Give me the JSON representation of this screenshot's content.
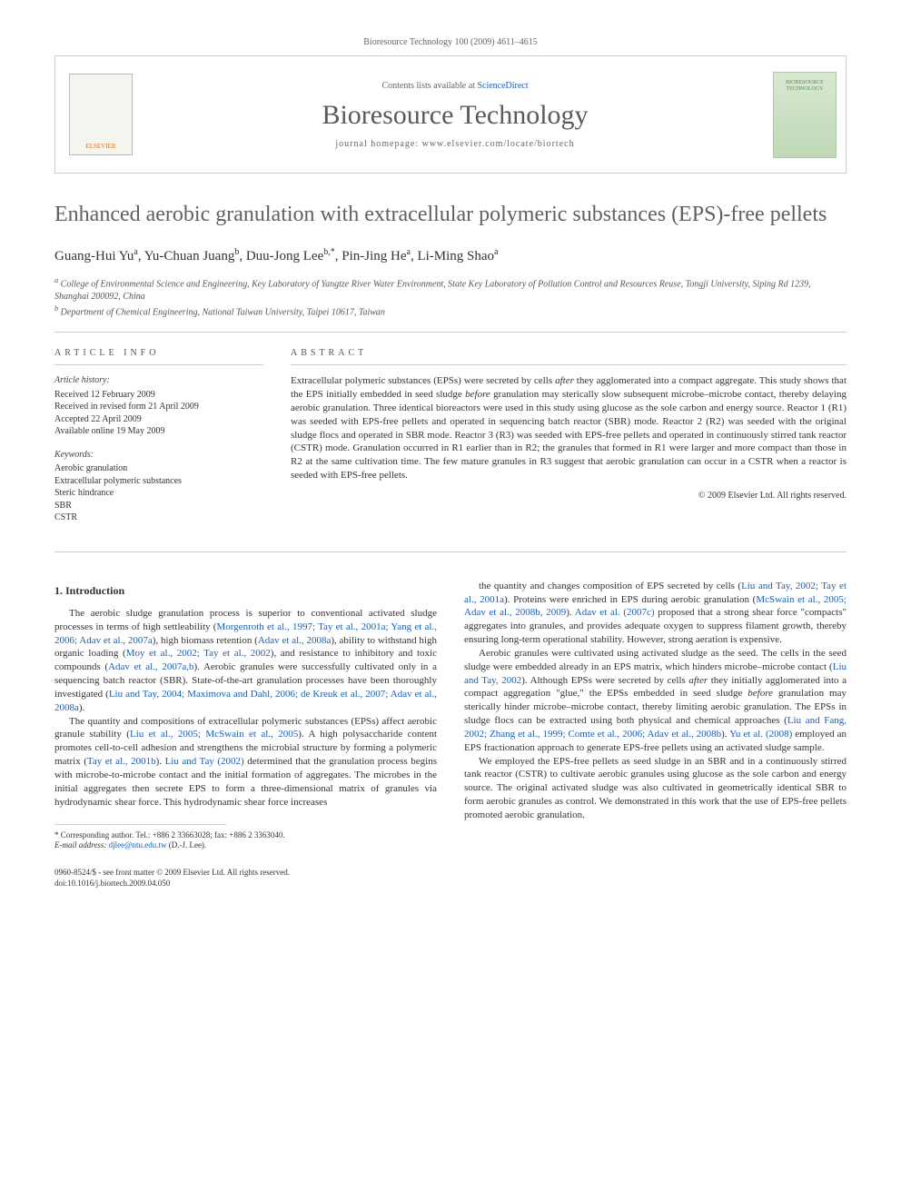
{
  "meta": {
    "citation": "Bioresource Technology 100 (2009) 4611–4615"
  },
  "header": {
    "contents_prefix": "Contents lists available at ",
    "contents_link": "ScienceDirect",
    "journal": "Bioresource Technology",
    "homepage": "journal homepage: www.elsevier.com/locate/biortech",
    "publisher_logo": "ELSEVIER",
    "cover_text": "BIORESOURCE TECHNOLOGY"
  },
  "title": "Enhanced aerobic granulation with extracellular polymeric substances (EPS)-free pellets",
  "authors_html": "Guang-Hui Yu<sup>a</sup>, Yu-Chuan Juang<sup>b</sup>, Duu-Jong Lee<sup>b,*</sup>, Pin-Jing He<sup>a</sup>, Li-Ming Shao<sup>a</sup>",
  "affiliations": {
    "a": "College of Environmental Science and Engineering, Key Laboratory of Yangtze River Water Environment, State Key Laboratory of Pollution Control and Resources Reuse, Tongji University, Siping Rd 1239, Shanghai 200092, China",
    "b": "Department of Chemical Engineering, National Taiwan University, Taipei 10617, Taiwan"
  },
  "article_info": {
    "heading": "ARTICLE INFO",
    "history_label": "Article history:",
    "history": [
      "Received 12 February 2009",
      "Received in revised form 21 April 2009",
      "Accepted 22 April 2009",
      "Available online 19 May 2009"
    ],
    "keywords_label": "Keywords:",
    "keywords": [
      "Aerobic granulation",
      "Extracellular polymeric substances",
      "Steric hindrance",
      "SBR",
      "CSTR"
    ]
  },
  "abstract": {
    "heading": "ABSTRACT",
    "text": "Extracellular polymeric substances (EPSs) were secreted by cells <em>after</em> they agglomerated into a compact aggregate. This study shows that the EPS initially embedded in seed sludge <em>before</em> granulation may sterically slow subsequent microbe–microbe contact, thereby delaying aerobic granulation. Three identical bioreactors were used in this study using glucose as the sole carbon and energy source. Reactor 1 (R1) was seeded with EPS-free pellets and operated in sequencing batch reactor (SBR) mode. Reactor 2 (R2) was seeded with the original sludge flocs and operated in SBR mode. Reactor 3 (R3) was seeded with EPS-free pellets and operated in continuously stirred tank reactor (CSTR) mode. Granulation occurred in R1 earlier than in R2; the granules that formed in R1 were larger and more compact than those in R2 at the same cultivation time. The few mature granules in R3 suggest that aerobic granulation can occur in a CSTR when a reactor is seeded with EPS-free pellets.",
    "copyright": "© 2009 Elsevier Ltd. All rights reserved."
  },
  "body": {
    "section1_heading": "1. Introduction",
    "p1": "The aerobic sludge granulation process is superior to conventional activated sludge processes in terms of high settleability (<span class=\"cite\">Morgenroth et al., 1997; Tay et al., 2001a; Yang et al., 2006; Adav et al., 2007a</span>), high biomass retention (<span class=\"cite\">Adav et al., 2008a</span>), ability to withstand high organic loading (<span class=\"cite\">Moy et al., 2002; Tay et al., 2002</span>), and resistance to inhibitory and toxic compounds (<span class=\"cite\">Adav et al., 2007a,b</span>). Aerobic granules were successfully cultivated only in a sequencing batch reactor (SBR). State-of-the-art granulation processes have been thoroughly investigated (<span class=\"cite\">Liu and Tay, 2004; Maximova and Dahl, 2006; de Kreuk et al., 2007; Adav et al., 2008a</span>).",
    "p2": "The quantity and compositions of extracellular polymeric substances (EPSs) affect aerobic granule stability (<span class=\"cite\">Liu et al., 2005; McSwain et al., 2005</span>). A high polysaccharide content promotes cell-to-cell adhesion and strengthens the microbial structure by forming a polymeric matrix (<span class=\"cite\">Tay et al., 2001b</span>). <span class=\"cite\">Liu and Tay (2002)</span> determined that the granulation process begins with microbe-to-microbe contact and the initial formation of aggregates. The microbes in the initial aggregates then secrete EPS to form a three-dimensional matrix of granules via hydrodynamic shear force. This hydrodynamic shear force increases",
    "p3": "the quantity and changes composition of EPS secreted by cells (<span class=\"cite\">Liu and Tay, 2002; Tay et al., 2001a</span>). Proteins were enriched in EPS during aerobic granulation (<span class=\"cite\">McSwain et al., 2005; Adav et al., 2008b, 2009</span>). <span class=\"cite\">Adav et al. (2007c)</span> proposed that a strong shear force \"compacts\" aggregates into granules, and provides adequate oxygen to suppress filament growth, thereby ensuring long-term operational stability. However, strong aeration is expensive.",
    "p4": "Aerobic granules were cultivated using activated sludge as the seed. The cells in the seed sludge were embedded already in an EPS matrix, which hinders microbe–microbe contact (<span class=\"cite\">Liu and Tay, 2002</span>). Although EPSs were secreted by cells <em>after</em> they initially agglomerated into a compact aggregation \"glue,\" the EPSs embedded in seed sludge <em>before</em> granulation may sterically hinder microbe–microbe contact, thereby limiting aerobic granulation. The EPSs in sludge flocs can be extracted using both physical and chemical approaches (<span class=\"cite\">Liu and Fang, 2002; Zhang et al., 1999; Comte et al., 2006; Adav et al., 2008b</span>). <span class=\"cite\">Yu et al. (2008)</span> employed an EPS fractionation approach to generate EPS-free pellets using an activated sludge sample.",
    "p5": "We employed the EPS-free pellets as seed sludge in an SBR and in a continuously stirred tank reactor (CSTR) to cultivate aerobic granules using glucose as the sole carbon and energy source. The original activated sludge was also cultivated in geometrically identical SBR to form aerobic granules as control. We demonstrated in this work that the use of EPS-free pellets promoted aerobic granulation."
  },
  "footnote": {
    "corr": "* Corresponding author. Tel.: +886 2 33663028; fax: +886 2 3363040.",
    "email_label": "E-mail address:",
    "email": "djlee@ntu.edu.tw",
    "email_person": "(D.-J. Lee)."
  },
  "footer": {
    "line1": "0960-8524/$ - see front matter © 2009 Elsevier Ltd. All rights reserved.",
    "line2": "doi:10.1016/j.biortech.2009.04.050"
  },
  "colors": {
    "link": "#1a5fb4",
    "text": "#333333",
    "muted": "#666666",
    "rule": "#cccccc",
    "elsevier_orange": "#e8701a",
    "cover_bg": "#d8e8d0"
  }
}
